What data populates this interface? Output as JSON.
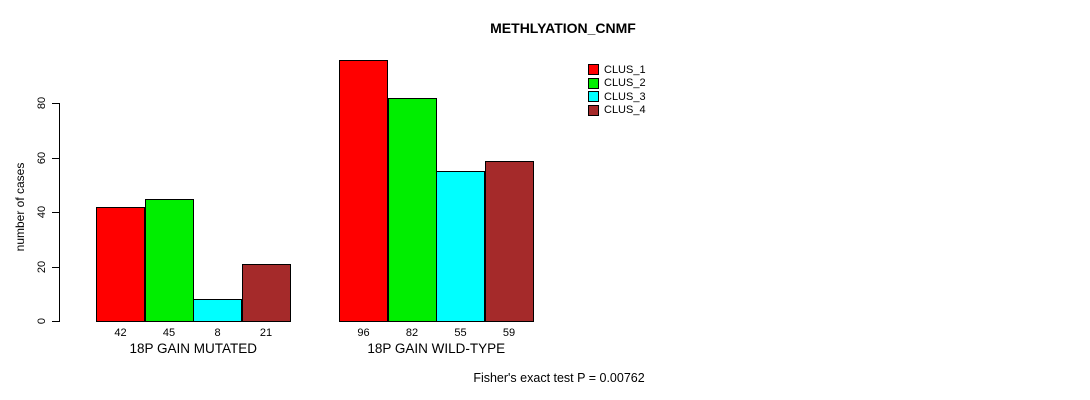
{
  "chart_data": {
    "type": "bar",
    "title": "METHLYATION_CNMF",
    "xlabel": "",
    "ylabel": "number of cases",
    "ylim": [
      0,
      100
    ],
    "yticks": [
      0,
      20,
      40,
      60,
      80
    ],
    "grid": false,
    "legend_position": "top-right",
    "categories": [
      "18P GAIN MUTATED",
      "18P GAIN WILD-TYPE"
    ],
    "series": [
      {
        "name": "CLUS_1",
        "color": "#ff0000",
        "values": [
          42,
          96
        ]
      },
      {
        "name": "CLUS_2",
        "color": "#00ee00",
        "values": [
          45,
          82
        ]
      },
      {
        "name": "CLUS_3",
        "color": "#00ffff",
        "values": [
          8,
          55
        ]
      },
      {
        "name": "CLUS_4",
        "color": "#a52a2a",
        "values": [
          21,
          59
        ]
      }
    ],
    "bar_value_labels": [
      [
        42,
        45,
        8,
        21
      ],
      [
        96,
        82,
        55,
        59
      ]
    ],
    "annotation": "Fisher's exact test P = 0.00762"
  },
  "colors": {
    "axis": "#000000",
    "text": "#000000",
    "background": "#ffffff"
  }
}
